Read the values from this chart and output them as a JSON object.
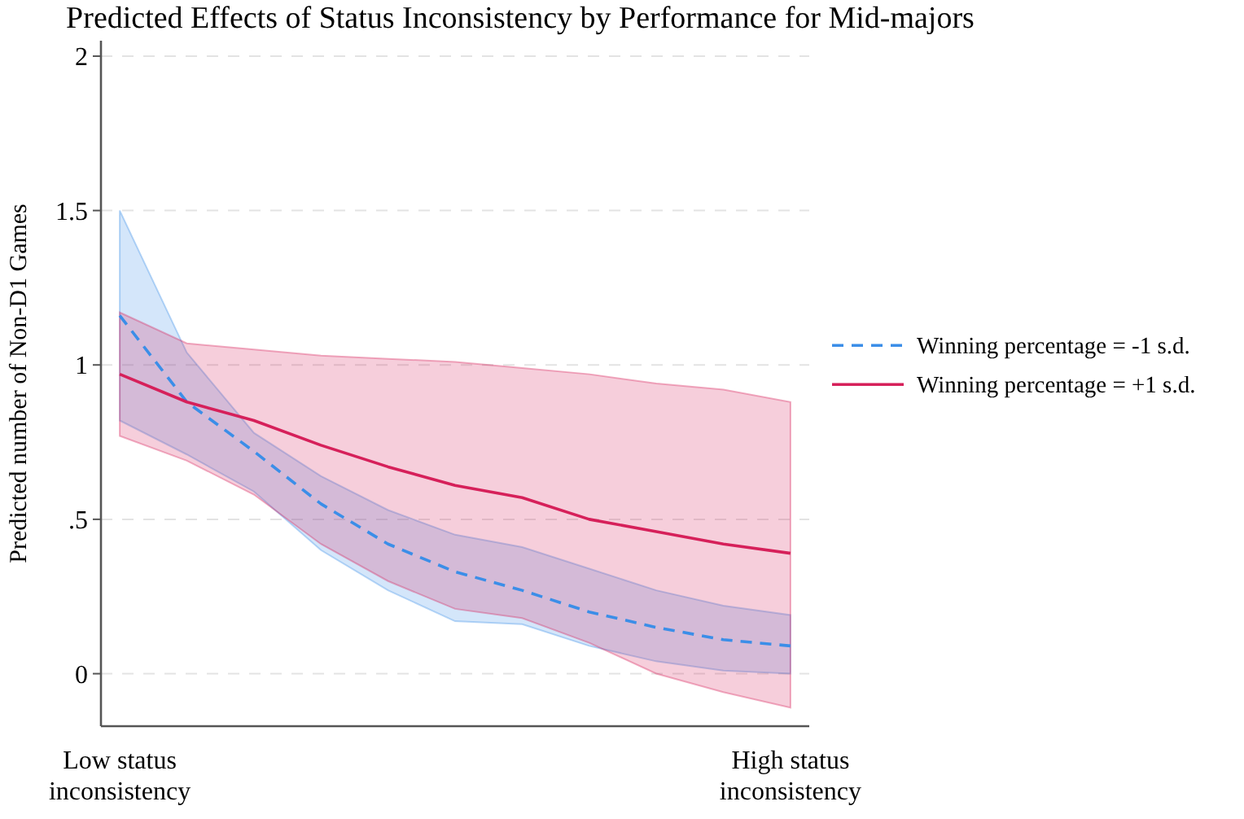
{
  "chart_data": {
    "type": "line",
    "title": "Predicted Effects of Status Inconsistency by Performance for Mid-majors",
    "ylabel": "Predicted number of Non-D1 Games",
    "categories": [
      "Low status inconsistency",
      null,
      null,
      null,
      null,
      null,
      null,
      null,
      null,
      null,
      "High status inconsistency"
    ],
    "series": [
      {
        "name": "Winning percentage = -1 s.d.",
        "color": "#3b8ee8",
        "line_style": "dashed",
        "values": [
          1.16,
          0.88,
          0.72,
          0.55,
          0.42,
          0.33,
          0.27,
          0.2,
          0.15,
          0.11,
          0.09
        ],
        "lower": [
          0.82,
          0.71,
          0.59,
          0.4,
          0.27,
          0.17,
          0.16,
          0.09,
          0.04,
          0.01,
          0
        ],
        "upper": [
          1.5,
          1.04,
          0.78,
          0.64,
          0.53,
          0.45,
          0.41,
          0.34,
          0.27,
          0.22,
          0.19
        ]
      },
      {
        "name": "Winning percentage = +1 s.d.",
        "color": "#d6205a",
        "line_style": "solid",
        "values": [
          0.97,
          0.88,
          0.82,
          0.74,
          0.67,
          0.61,
          0.57,
          0.5,
          0.46,
          0.42,
          0.39
        ],
        "lower": [
          0.77,
          0.69,
          0.58,
          0.42,
          0.3,
          0.21,
          0.18,
          0.1,
          0,
          -0.06,
          -0.11
        ],
        "upper": [
          1.17,
          1.07,
          1.05,
          1.03,
          1.02,
          1.01,
          0.99,
          0.97,
          0.94,
          0.92,
          0.88
        ]
      }
    ],
    "ylim": [
      -0.17,
      2.05
    ],
    "yticks": [
      0,
      {
        "value": 0.5,
        "label": ".5"
      },
      1,
      1.5,
      2
    ],
    "grid": "y",
    "legend": "right",
    "marker": "none"
  }
}
